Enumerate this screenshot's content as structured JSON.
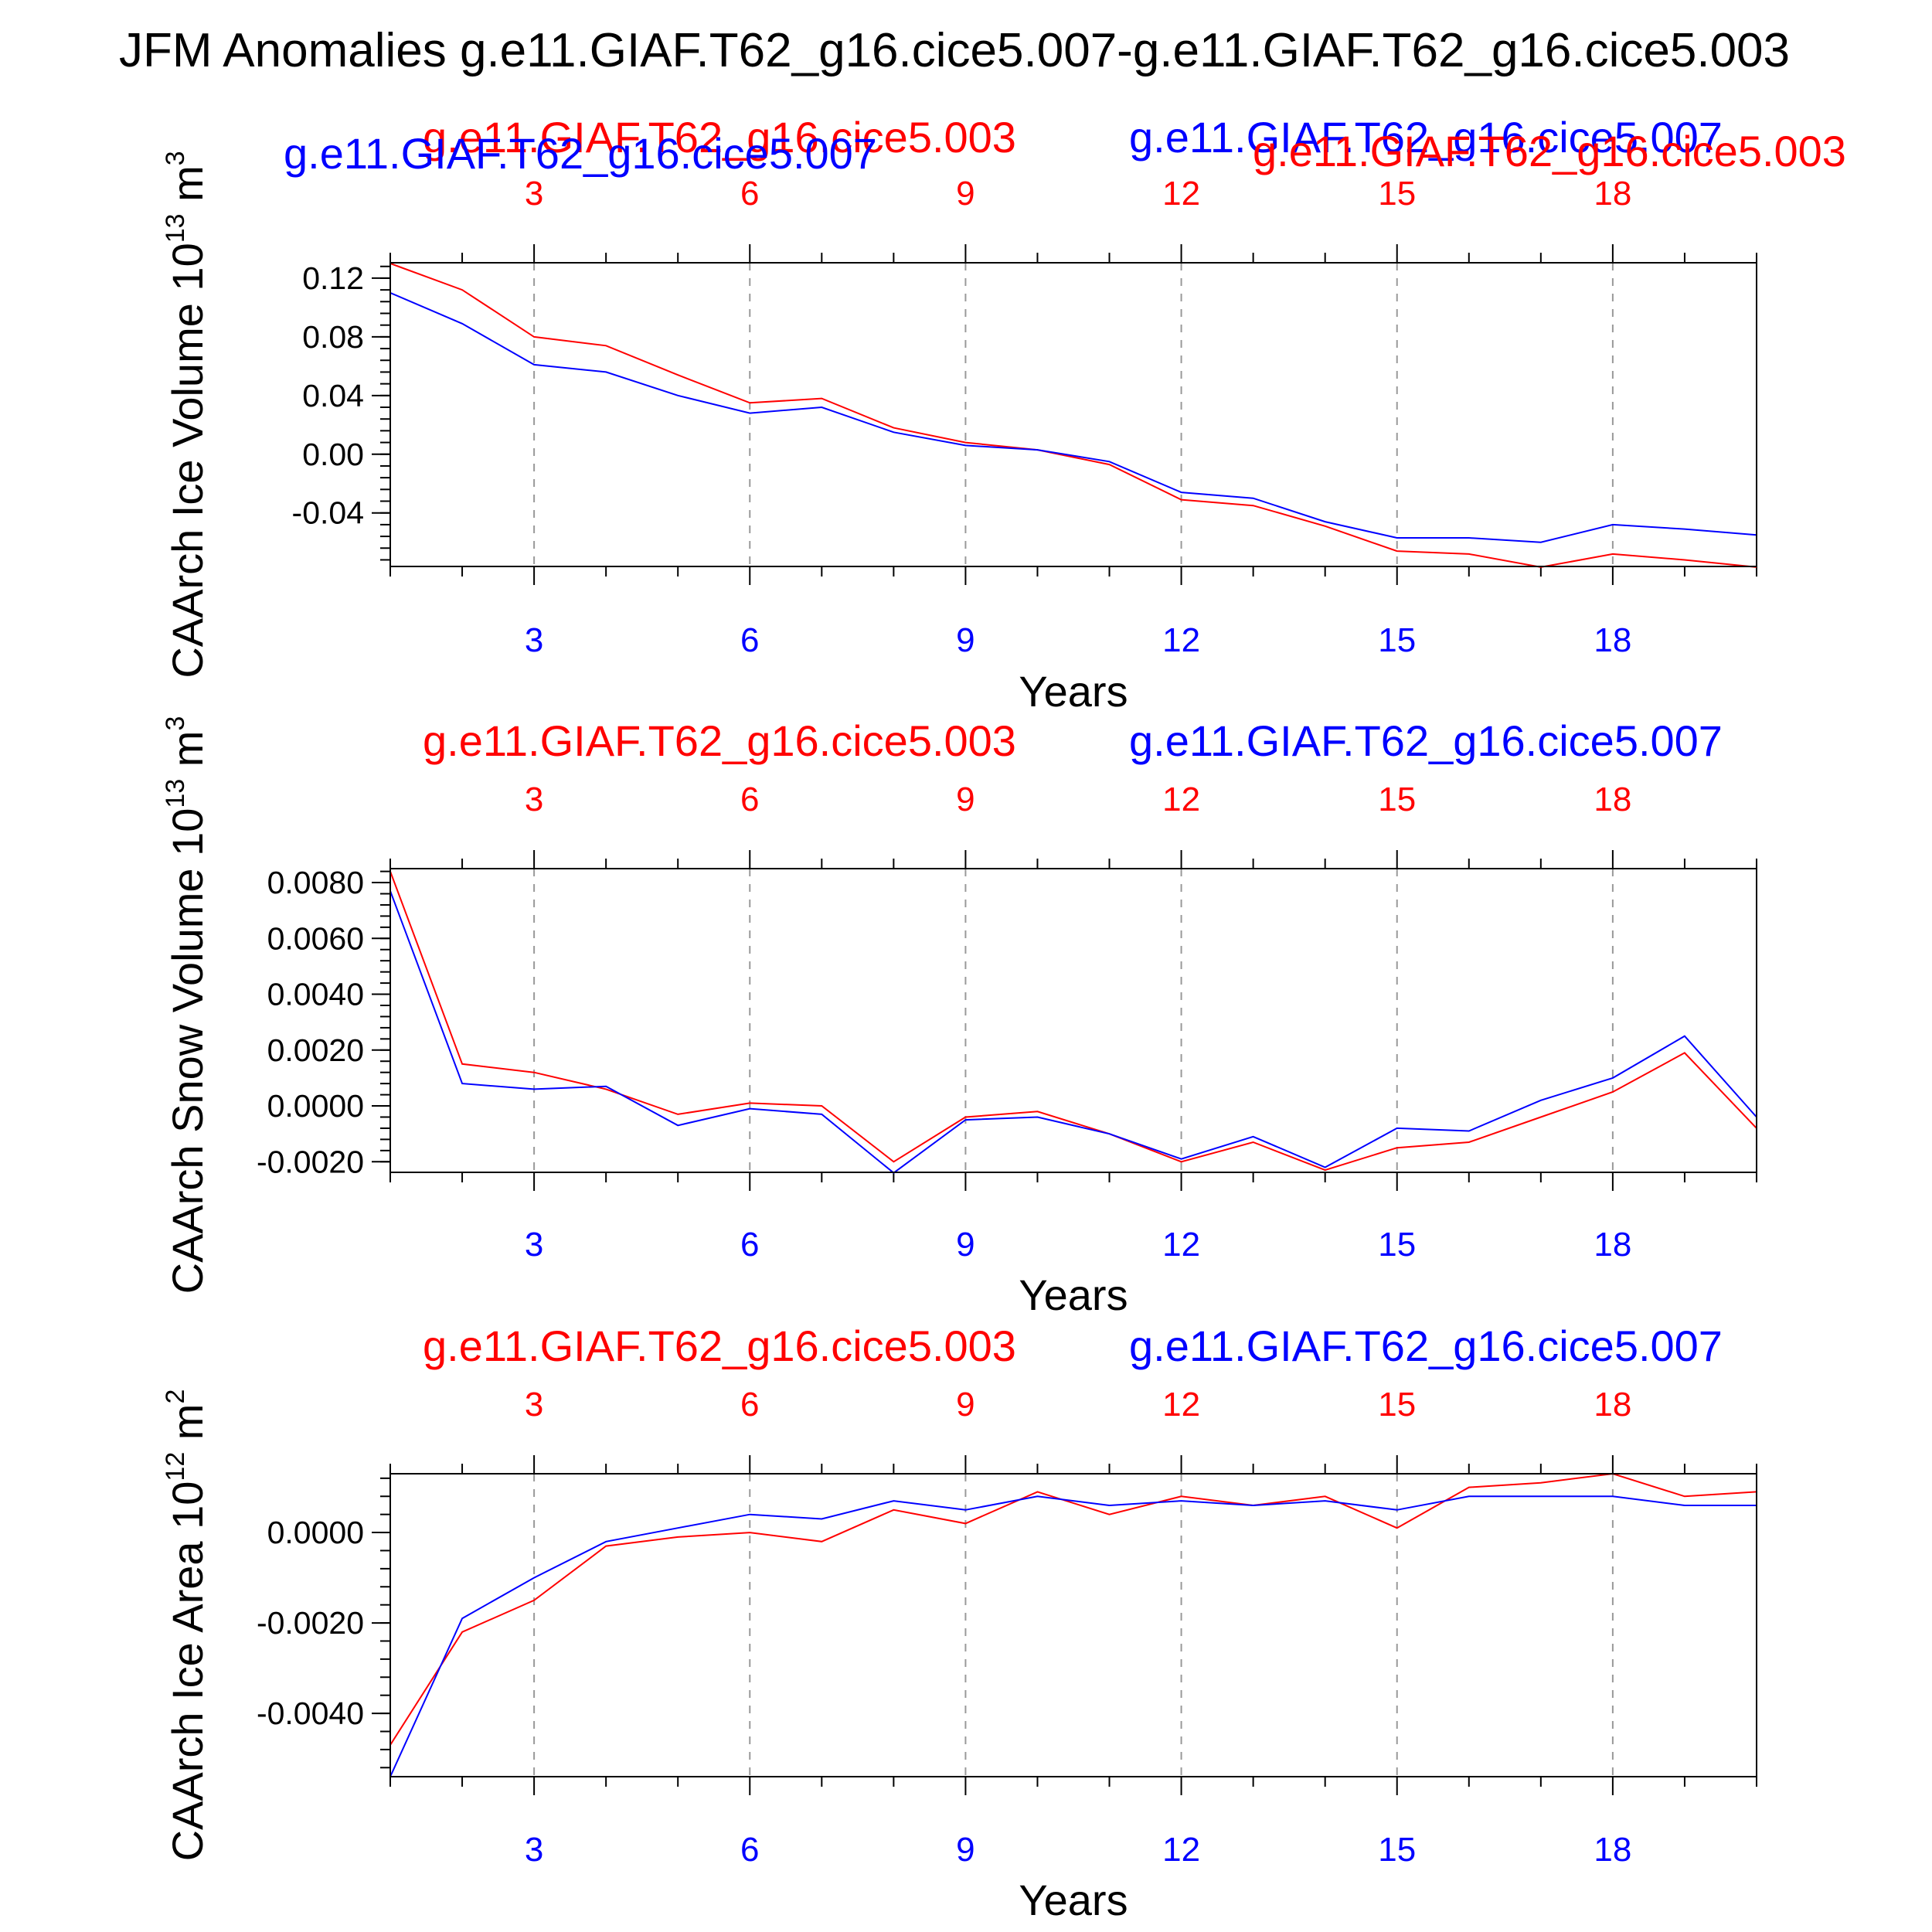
{
  "figure": {
    "title": "JFM Anomalies g.e11.GIAF.T62_g16.cice5.007-g.e11.GIAF.T62_g16.cice5.003"
  },
  "colors": {
    "red": "#ff0000",
    "blue": "#0000ff",
    "black": "#000000",
    "grid": "#999999"
  },
  "chart_data": [
    {
      "type": "line",
      "title_left": "g.e11.GIAF.T62_g16.cice5.003",
      "title_right": "g.e11.GIAF.T62_g16.cice5.007",
      "legend_extra": [
        "g.e11.GIAF.T62_g16.cice5.007",
        "g.e11.GIAF.T62_g16.cice5.003"
      ],
      "xlabel": "Years",
      "ylabel": "CAArch Ice Volume 10",
      "ylabel_exp": "13",
      "ylabel_unit": "m",
      "ylabel_unit_exp": "3",
      "xlim": [
        1,
        20
      ],
      "ylim": [
        -0.0765,
        0.1305
      ],
      "x_ticks": [
        3,
        6,
        9,
        12,
        15,
        18
      ],
      "x_tick_labels": [
        "3",
        "6",
        "9",
        "12",
        "15",
        "18"
      ],
      "y_ticks": [
        0.12,
        0.08,
        0.04,
        0.0,
        -0.04
      ],
      "y_tick_labels": [
        "0.12",
        "0.08",
        "0.04",
        "0.00",
        "-0.04"
      ],
      "y_minor_step": 0.008,
      "x": [
        1,
        2,
        3,
        4,
        5,
        6,
        7,
        8,
        9,
        10,
        11,
        12,
        13,
        14,
        15,
        16,
        17,
        18,
        19,
        20
      ],
      "series": [
        {
          "name": "g.e11.GIAF.T62_g16.cice5.003",
          "color": "red",
          "values": [
            0.13,
            0.112,
            0.08,
            0.074,
            0.054,
            0.035,
            0.038,
            0.018,
            0.008,
            0.003,
            -0.007,
            -0.031,
            -0.035,
            -0.049,
            -0.066,
            -0.068,
            -0.077,
            -0.068,
            -0.072,
            -0.077
          ]
        },
        {
          "name": "g.e11.GIAF.T62_g16.cice5.007",
          "color": "blue",
          "values": [
            0.11,
            0.089,
            0.061,
            0.056,
            0.04,
            0.028,
            0.032,
            0.015,
            0.006,
            0.003,
            -0.005,
            -0.026,
            -0.03,
            -0.046,
            -0.057,
            -0.057,
            -0.06,
            -0.048,
            -0.051,
            -0.055
          ]
        }
      ]
    },
    {
      "type": "line",
      "title_left": "g.e11.GIAF.T62_g16.cice5.003",
      "title_right": "g.e11.GIAF.T62_g16.cice5.007",
      "xlabel": "Years",
      "ylabel": "CAArch Snow Volume 10",
      "ylabel_exp": "13",
      "ylabel_unit": "m",
      "ylabel_unit_exp": "3",
      "xlim": [
        1,
        20
      ],
      "ylim": [
        -0.00238,
        0.0085
      ],
      "x_ticks": [
        3,
        6,
        9,
        12,
        15,
        18
      ],
      "x_tick_labels": [
        "3",
        "6",
        "9",
        "12",
        "15",
        "18"
      ],
      "y_ticks": [
        0.008,
        0.006,
        0.004,
        0.002,
        0.0,
        -0.002
      ],
      "y_tick_labels": [
        "0.0080",
        "0.0060",
        "0.0040",
        "0.0020",
        "0.0000",
        "-0.0020"
      ],
      "y_minor_step": 0.0004,
      "x": [
        1,
        2,
        3,
        4,
        5,
        6,
        7,
        8,
        9,
        10,
        11,
        12,
        13,
        14,
        15,
        16,
        17,
        18,
        19,
        20
      ],
      "series": [
        {
          "name": "g.e11.GIAF.T62_g16.cice5.003",
          "color": "red",
          "values": [
            0.0084,
            0.0015,
            0.0012,
            0.0006,
            -0.0003,
            0.0001,
            0.0,
            -0.002,
            -0.0004,
            -0.0002,
            -0.001,
            -0.002,
            -0.0013,
            -0.0023,
            -0.0015,
            -0.0013,
            -0.0004,
            0.0005,
            0.0019,
            -0.0008
          ]
        },
        {
          "name": "g.e11.GIAF.T62_g16.cice5.007",
          "color": "blue",
          "values": [
            0.0077,
            0.0008,
            0.0006,
            0.0007,
            -0.0007,
            -0.0001,
            -0.0003,
            -0.0024,
            -0.0005,
            -0.0004,
            -0.001,
            -0.0019,
            -0.0011,
            -0.0022,
            -0.0008,
            -0.0009,
            0.0002,
            0.001,
            0.0025,
            -0.0004
          ]
        }
      ]
    },
    {
      "type": "line",
      "title_left": "g.e11.GIAF.T62_g16.cice5.003",
      "title_right": "g.e11.GIAF.T62_g16.cice5.007",
      "xlabel": "Years",
      "ylabel": "CAArch Ice Area 10",
      "ylabel_exp": "12",
      "ylabel_unit": "m",
      "ylabel_unit_exp": "2",
      "xlim": [
        1,
        20
      ],
      "ylim": [
        -0.0054,
        0.0013
      ],
      "x_ticks": [
        3,
        6,
        9,
        12,
        15,
        18
      ],
      "x_tick_labels": [
        "3",
        "6",
        "9",
        "12",
        "15",
        "18"
      ],
      "y_ticks": [
        0.0,
        -0.002,
        -0.004
      ],
      "y_tick_labels": [
        "0.0000",
        "-0.0020",
        "-0.0040"
      ],
      "y_minor_step": 0.0004,
      "x": [
        1,
        2,
        3,
        4,
        5,
        6,
        7,
        8,
        9,
        10,
        11,
        12,
        13,
        14,
        15,
        16,
        17,
        18,
        19,
        20
      ],
      "series": [
        {
          "name": "g.e11.GIAF.T62_g16.cice5.003",
          "color": "red",
          "values": [
            -0.0047,
            -0.0022,
            -0.0015,
            -0.0003,
            -0.0001,
            0.0,
            -0.0002,
            0.0005,
            0.0002,
            0.0009,
            0.0004,
            0.0008,
            0.0006,
            0.0008,
            0.0001,
            0.001,
            0.0011,
            0.0013,
            0.0008,
            0.0009
          ]
        },
        {
          "name": "g.e11.GIAF.T62_g16.cice5.007",
          "color": "blue",
          "values": [
            -0.0054,
            -0.0019,
            -0.001,
            -0.0002,
            0.0001,
            0.0004,
            0.0003,
            0.0007,
            0.0005,
            0.0008,
            0.0006,
            0.0007,
            0.0006,
            0.0007,
            0.0005,
            0.0008,
            0.0008,
            0.0008,
            0.0006,
            0.0006
          ]
        }
      ]
    }
  ]
}
